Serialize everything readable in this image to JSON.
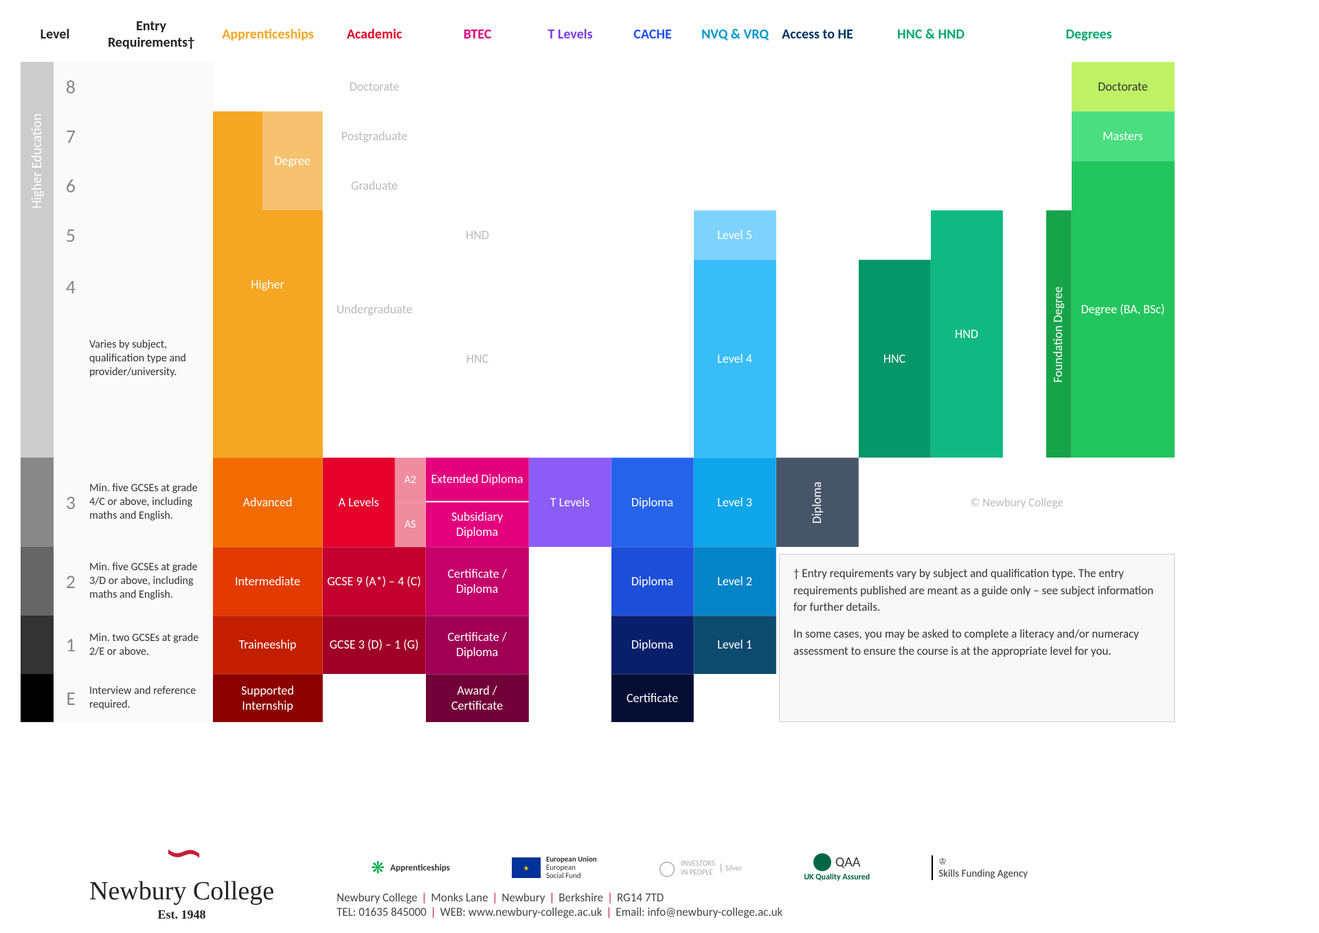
{
  "columns": {
    "level": "Level",
    "entry": "Entry Requirements†",
    "apprenticeships": "Apprenticeships",
    "academic": "Academic",
    "btec": "BTEC",
    "tlevels": "T Levels",
    "cache": "CACHE",
    "nvq": "NVQ & VRQ",
    "access": "Access to HE",
    "hnc": "HNC & HND",
    "degrees": "Degrees"
  },
  "header_colors": {
    "level": "#222222",
    "entry": "#222222",
    "apprenticeships": "#f5a623",
    "academic": "#e4002b",
    "btec": "#e4007d",
    "tlevels": "#7c3aed",
    "cache": "#1f4fff",
    "nvq": "#0099cc",
    "access": "#003366",
    "hnc": "#00a86b",
    "degrees": "#00a86b"
  },
  "levels": {
    "8": "8",
    "7": "7",
    "6": "6",
    "5": "5",
    "4": "4",
    "3": "3",
    "2": "2",
    "1": "1",
    "E": "E"
  },
  "entry_req": {
    "r48": "Varies by subject, qualification type and provider/university.",
    "r3": "Min. five GCSEs at grade 4/C or above, including maths and English.",
    "r2": "Min. five GCSEs at grade 3/D or above, including maths and English.",
    "r1": "Min. two GCSEs at grade 2/E or above.",
    "rE": "Interview and reference required."
  },
  "sidebar": {
    "he_label": "Higher Education",
    "colors": {
      "he": "#cccccc",
      "l3": "#888888",
      "l2": "#666666",
      "l1": "#333333",
      "lE": "#000000"
    }
  },
  "blocks": {
    "app_higher": {
      "label": "Higher",
      "color": "#f5a623"
    },
    "app_degree": {
      "label": "Degree",
      "color": "#f7c270"
    },
    "app_advanced": {
      "label": "Advanced",
      "color": "#f26b00"
    },
    "app_inter": {
      "label": "Intermediate",
      "color": "#e23a00"
    },
    "app_trainee": {
      "label": "Traineeship",
      "color": "#c41e00"
    },
    "app_support": {
      "label": "Supported Internship",
      "color": "#8b0000"
    },
    "acad_doctorate": {
      "label": "Doctorate",
      "ghost": true
    },
    "acad_postgrad": {
      "label": "Postgraduate",
      "ghost": true
    },
    "acad_grad": {
      "label": "Graduate",
      "ghost": true
    },
    "acad_undergrad": {
      "label": "Undergraduate",
      "ghost": true
    },
    "acad_alevels": {
      "label": "A Levels",
      "color": "#e4002b"
    },
    "acad_a2": {
      "label": "A2",
      "color": "#f08ca0"
    },
    "acad_as": {
      "label": "AS",
      "color": "#f08ca0"
    },
    "acad_gcse94": {
      "label": "GCSE 9 (A*) – 4 (C)",
      "color": "#c3002f"
    },
    "acad_gcse31": {
      "label": "GCSE 3 (D) – 1 (G)",
      "color": "#a00028"
    },
    "btec_hnd": {
      "label": "HND",
      "ghost": true
    },
    "btec_hnc": {
      "label": "HNC",
      "ghost": true
    },
    "btec_extdip": {
      "label": "Extended Diploma",
      "color": "#e4007d"
    },
    "btec_subdip": {
      "label": "Subsidiary Diploma",
      "color": "#e4007d"
    },
    "btec_certdip2": {
      "label": "Certificate / Diploma",
      "color": "#c40069"
    },
    "btec_certdip1": {
      "label": "Certificate / Diploma",
      "color": "#a00054"
    },
    "btec_award": {
      "label": "Award / Certificate",
      "color": "#700038"
    },
    "tlevels": {
      "label": "T Levels",
      "color": "#8b5cf6"
    },
    "cache_dip3": {
      "label": "Diploma",
      "color": "#2563eb"
    },
    "cache_dip2": {
      "label": "Diploma",
      "color": "#1d4ed8"
    },
    "cache_dip1": {
      "label": "Diploma",
      "color": "#0a1f6b"
    },
    "cache_cert": {
      "label": "Certificate",
      "color": "#050d33"
    },
    "nvq_l5": {
      "label": "Level 5",
      "color": "#7dd3fc"
    },
    "nvq_l4": {
      "label": "Level 4",
      "color": "#38bdf8"
    },
    "nvq_l3": {
      "label": "Level 3",
      "color": "#0ea5e9"
    },
    "nvq_l2": {
      "label": "Level 2",
      "color": "#0284c7"
    },
    "nvq_l1": {
      "label": "Level 1",
      "color": "#0c4a6e"
    },
    "access_dip": {
      "label": "Diploma",
      "color": "#475569"
    },
    "hnc_hnc": {
      "label": "HNC",
      "color": "#059669"
    },
    "hnc_hnd": {
      "label": "HND",
      "color": "#10b981"
    },
    "deg_found": {
      "label": "Foundation Degree",
      "color": "#16a34a"
    },
    "deg_babsc": {
      "label": "Degree (BA, BSc)",
      "color": "#22c55e"
    },
    "deg_masters": {
      "label": "Masters",
      "color": "#4ade80"
    },
    "deg_doctorate": {
      "label": "Doctorate",
      "color": "#bef264"
    }
  },
  "footnote": {
    "p1": "† Entry requirements vary by subject and qualification type. The entry requirements published are meant as a guide only – see subject information for further details.",
    "p2": "In some cases, you may be asked to complete a literacy and/or numeracy assessment to ensure the course is at the appropriate level for you."
  },
  "copyright": "© Newbury College",
  "footer": {
    "college_name": "Newbury College",
    "est": "Est. 1948",
    "address_l1": "Newbury College | Monks Lane | Newbury | Berkshire | RG14 7TD",
    "address_l2": "TEL: 01635 845000 | WEB: www.newbury-college.ac.uk | Email: info@newbury-college.ac.uk",
    "logos": {
      "appr": "Apprenticeships",
      "eu1": "European Union",
      "eu2": "European",
      "eu3": "Social Fund",
      "iip1": "INVESTORS",
      "iip2": "IN PEOPLE",
      "iip3": "Silver",
      "qaa1": "QAA",
      "qaa2": "UK Quality Assured",
      "sfa": "Skills Funding Agency"
    }
  }
}
